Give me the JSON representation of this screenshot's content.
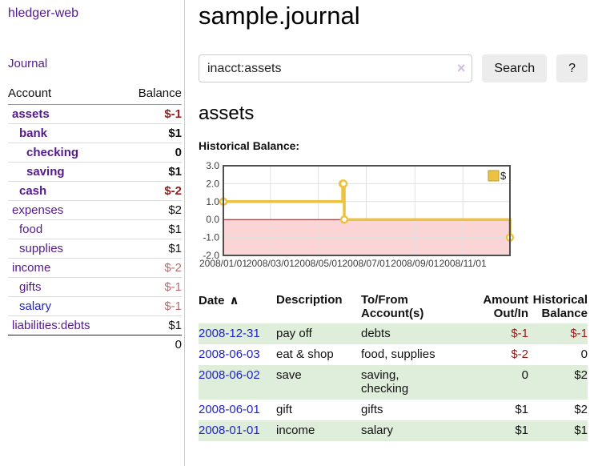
{
  "colors": {
    "purple": "#551a8b",
    "blue": "#2222cc",
    "dark_red": "#951b1b",
    "muted_red": "#bb6a6a",
    "stripe": "#deeeda",
    "btn_bg": "#ececec",
    "input_border": "#cccccc",
    "clear_color": "#cdbfdb",
    "row_line": "#dddddd",
    "header_line": "#999999",
    "total_line": "#222222",
    "sidebar_border": "#cccccc"
  },
  "sidebar": {
    "brand": "hledger-web",
    "journal_label": "Journal",
    "accounts_table": {
      "headers": [
        "Account",
        "Balance"
      ],
      "rows": [
        {
          "name": "assets",
          "indent": 1,
          "bold": true,
          "balance": "$-1",
          "negative": true,
          "muted": false,
          "unvisited": false
        },
        {
          "name": "bank",
          "indent": 2,
          "bold": true,
          "balance": "$1",
          "negative": false,
          "muted": false,
          "unvisited": false
        },
        {
          "name": "checking",
          "indent": 3,
          "bold": true,
          "balance": "0",
          "negative": false,
          "muted": false,
          "unvisited": false
        },
        {
          "name": "saving",
          "indent": 3,
          "bold": true,
          "balance": "$1",
          "negative": false,
          "muted": false,
          "unvisited": false
        },
        {
          "name": "cash",
          "indent": 2,
          "bold": true,
          "balance": "$-2",
          "negative": true,
          "muted": false,
          "unvisited": false
        },
        {
          "name": "expenses",
          "indent": 1,
          "bold": false,
          "balance": "$2",
          "negative": false,
          "muted": false,
          "unvisited": false
        },
        {
          "name": "food",
          "indent": 2,
          "bold": false,
          "balance": "$1",
          "negative": false,
          "muted": false,
          "unvisited": false
        },
        {
          "name": "supplies",
          "indent": 2,
          "bold": false,
          "balance": "$1",
          "negative": false,
          "muted": false,
          "unvisited": false
        },
        {
          "name": "income",
          "indent": 1,
          "bold": false,
          "balance": "$-2",
          "negative": true,
          "muted": true,
          "unvisited": false
        },
        {
          "name": "gifts",
          "indent": 2,
          "bold": false,
          "balance": "$-1",
          "negative": true,
          "muted": true,
          "unvisited": false
        },
        {
          "name": "salary",
          "indent": 2,
          "bold": false,
          "balance": "$-1",
          "negative": true,
          "muted": true,
          "unvisited": true
        },
        {
          "name": "liabilities:debts",
          "indent": 1,
          "bold": false,
          "balance": "$1",
          "negative": false,
          "muted": false,
          "unvisited": false
        }
      ],
      "total": "0"
    }
  },
  "header": {
    "title": "sample.journal"
  },
  "search": {
    "value": "inacct:assets",
    "clear_icon": "×",
    "button_label": "Search",
    "help_label": "?"
  },
  "account_page": {
    "title": "assets",
    "chart_label": "Historical Balance:"
  },
  "chart_data": {
    "type": "line",
    "step": "after",
    "title": "Historical Balance",
    "series": [
      {
        "name": "$",
        "color": "#edc240",
        "points": [
          [
            "2008-01-01",
            1
          ],
          [
            "2008-06-01",
            2
          ],
          [
            "2008-06-02",
            2
          ],
          [
            "2008-06-03",
            0
          ],
          [
            "2008-12-31",
            -1
          ]
        ]
      }
    ],
    "x_ticks": [
      "2008/01/01",
      "2008/03/01",
      "2008/05/01",
      "2008/07/01",
      "2008/09/01",
      "2008/11/01"
    ],
    "y_tick_labels": [
      "3.0",
      "2.0",
      "1.0",
      "0.0",
      "-1.0",
      "-2.0"
    ],
    "ylim": [
      -2,
      3
    ],
    "xlim": [
      "2008-01-01",
      "2008-12-31"
    ],
    "legend": {
      "label": "$",
      "position": "top-right"
    },
    "grid": true,
    "negative_region_fill": "#fbd5d5",
    "zero_line_color": "#8b1a1a",
    "grid_color": "#e0e0e0",
    "border_color": "#4f4f4f",
    "axis_text_color": "#3d3d3d",
    "legend_box_border": "#b89b34"
  },
  "register_table": {
    "date_header": "Date",
    "sort_icon": "∧",
    "headers": [
      "Description",
      "To/From\nAccount(s)",
      "Amount\nOut/In",
      "Historical\nBalance"
    ],
    "rows": [
      {
        "date": "2008-12-31",
        "description": "pay off",
        "accounts": "debts",
        "amount": "$-1",
        "amount_negative": true,
        "balance": "$-1",
        "balance_negative": true
      },
      {
        "date": "2008-06-03",
        "description": "eat & shop",
        "accounts": "food, supplies",
        "amount": "$-2",
        "amount_negative": true,
        "balance": "0",
        "balance_negative": false
      },
      {
        "date": "2008-06-02",
        "description": "save",
        "accounts": "saving,\nchecking",
        "amount": "0",
        "amount_negative": false,
        "balance": "$2",
        "balance_negative": false
      },
      {
        "date": "2008-06-01",
        "description": "gift",
        "accounts": "gifts",
        "amount": "$1",
        "amount_negative": false,
        "balance": "$2",
        "balance_negative": false
      },
      {
        "date": "2008-01-01",
        "description": "income",
        "accounts": "salary",
        "amount": "$1",
        "amount_negative": false,
        "balance": "$1",
        "balance_negative": false
      }
    ]
  }
}
